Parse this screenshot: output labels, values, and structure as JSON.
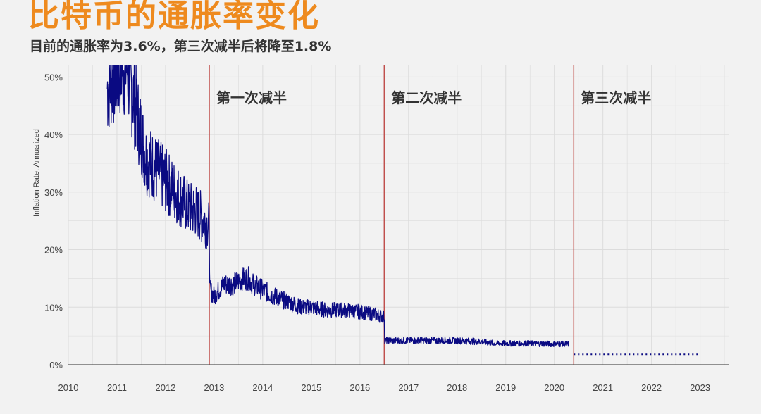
{
  "title": "比特币的通胀率变化",
  "subtitle": "目前的通胀率为3.6%，第三次减半后将降至1.8%",
  "colors": {
    "title": "#ee8a1e",
    "series": "#0a0a82",
    "halving_line": "#c0504d",
    "grid": "#dcdcdc",
    "background": "#f2f2f2"
  },
  "chart_data": {
    "type": "line",
    "ylabel": "Inflation Rate, Annualized",
    "xlabel": "",
    "xlim": [
      2010,
      2023.6
    ],
    "ylim": [
      0,
      52
    ],
    "grid": true,
    "x_ticks": [
      {
        "value": 2010,
        "label": "2010"
      },
      {
        "value": 2011,
        "label": "2011"
      },
      {
        "value": 2012,
        "label": "2012"
      },
      {
        "value": 2013,
        "label": "2013"
      },
      {
        "value": 2014,
        "label": "2014"
      },
      {
        "value": 2015,
        "label": "2015"
      },
      {
        "value": 2016,
        "label": "2016"
      },
      {
        "value": 2017,
        "label": "2017"
      },
      {
        "value": 2018,
        "label": "2018"
      },
      {
        "value": 2019,
        "label": "2019"
      },
      {
        "value": 2020,
        "label": "2020"
      },
      {
        "value": 2021,
        "label": "2021"
      },
      {
        "value": 2022,
        "label": "2022"
      },
      {
        "value": 2023,
        "label": "2023"
      }
    ],
    "y_ticks": [
      {
        "value": 0,
        "label": "0%"
      },
      {
        "value": 10,
        "label": "10%"
      },
      {
        "value": 20,
        "label": "20%"
      },
      {
        "value": 30,
        "label": "30%"
      },
      {
        "value": 40,
        "label": "40%"
      },
      {
        "value": 50,
        "label": "50%"
      }
    ],
    "halvings": [
      {
        "x": 2012.9,
        "label": "第一次减半"
      },
      {
        "x": 2016.5,
        "label": "第二次减半"
      },
      {
        "x": 2020.4,
        "label": "第三次减半"
      }
    ],
    "series": [
      {
        "style": "solid",
        "x": [
          2010.8,
          2010.9,
          2011.0,
          2011.1,
          2011.2,
          2011.3,
          2011.4,
          2011.5,
          2011.6,
          2011.7,
          2011.8,
          2011.9,
          2012.0,
          2012.1,
          2012.2,
          2012.3,
          2012.4,
          2012.5,
          2012.6,
          2012.7,
          2012.8,
          2012.9,
          2012.91,
          2013.0,
          2013.2,
          2013.4,
          2013.6,
          2013.7,
          2013.8,
          2014.0,
          2014.2,
          2014.5,
          2014.8,
          2015.0,
          2015.3,
          2015.6,
          2016.0,
          2016.3,
          2016.5,
          2016.51,
          2016.8,
          2017.0,
          2017.5,
          2018.0,
          2018.5,
          2018.8,
          2019.0,
          2019.5,
          2020.0,
          2020.3
        ],
        "y": [
          48,
          50,
          51,
          52,
          52,
          48,
          44,
          40,
          36,
          35,
          34,
          33,
          32,
          31,
          30,
          29,
          28,
          27,
          27,
          26,
          25,
          24,
          13,
          12,
          14,
          14,
          15,
          15,
          14,
          13,
          12,
          11,
          10,
          10,
          9.5,
          9.5,
          9.2,
          8.8,
          8.3,
          4.2,
          4.2,
          4.2,
          4.2,
          4.2,
          4.0,
          3.7,
          3.7,
          3.7,
          3.6,
          3.6
        ]
      },
      {
        "style": "dotted",
        "x": [
          2020.4,
          2021.0,
          2022.0,
          2023.0
        ],
        "y": [
          1.8,
          1.8,
          1.8,
          1.8
        ]
      }
    ]
  }
}
